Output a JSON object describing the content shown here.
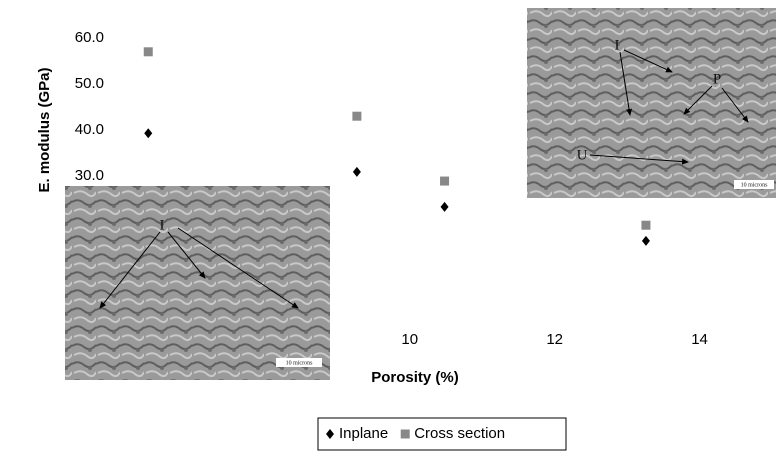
{
  "chart_data": {
    "type": "scatter",
    "x_label": "Porosity (%)",
    "y_label": "E. modulus (GPa)",
    "xlim": [
      6,
      15
    ],
    "xticks": [
      10,
      12,
      14
    ],
    "ylim": [
      0,
      60
    ],
    "yticks": [
      {
        "value": 30,
        "label": "30.0"
      },
      {
        "value": 40,
        "label": "40.0"
      },
      {
        "value": 50,
        "label": "50.0"
      },
      {
        "value": 60,
        "label": "60.0"
      }
    ],
    "series": [
      {
        "name": "Inplane",
        "color": "#000000",
        "marker": "diamond",
        "x": [
          6.39,
          9.27,
          10.48,
          13.26
        ],
        "values": [
          39.3,
          30.9,
          23.3,
          15.9
        ]
      },
      {
        "name": "Cross section",
        "color": "#888888",
        "marker": "square",
        "x": [
          6.39,
          9.27,
          10.48,
          13.26
        ],
        "values": [
          57.0,
          43.0,
          28.9,
          19.3
        ]
      }
    ],
    "legend": "bottom"
  },
  "insets": {
    "left": {
      "labels": [
        "I"
      ],
      "scale": "10 microns"
    },
    "right": {
      "labels": [
        "I",
        "P",
        "U"
      ],
      "scale": "10 microns"
    }
  }
}
